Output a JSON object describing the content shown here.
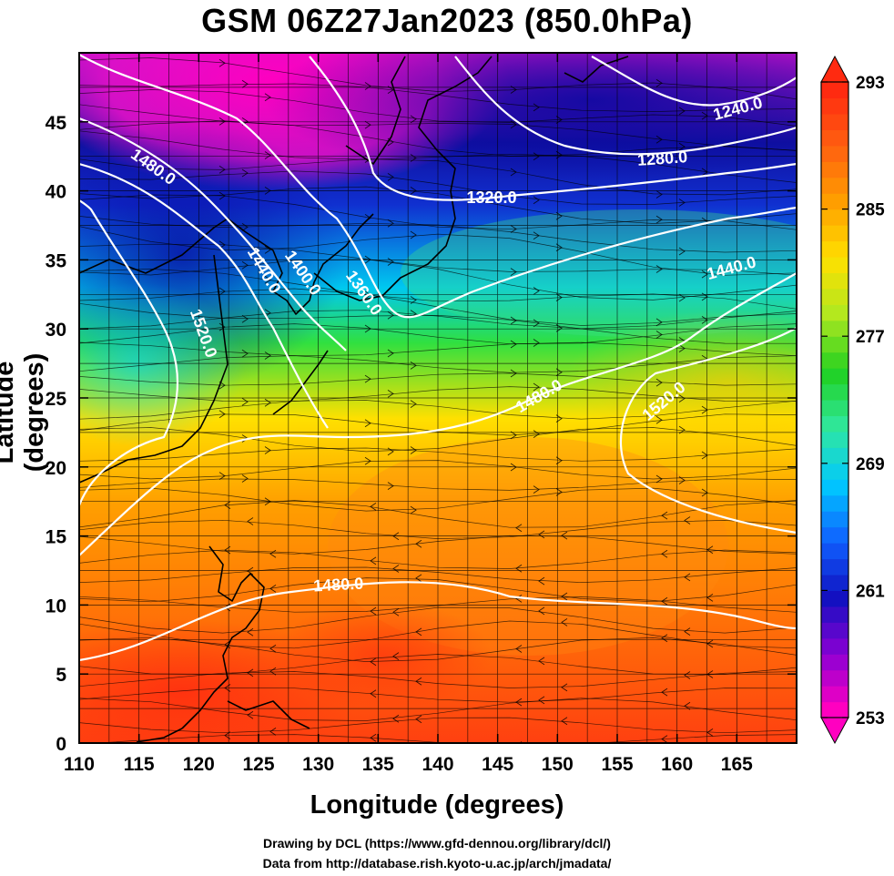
{
  "title": "GSM 06Z27Jan2023 (850.0hPa)",
  "axes": {
    "x_label": "Longitude (degrees)",
    "y_label": "Latitude  (degrees)",
    "x_ticks": [
      "110",
      "115",
      "120",
      "125",
      "130",
      "135",
      "140",
      "145",
      "150",
      "155",
      "160",
      "165"
    ],
    "y_ticks": [
      "0",
      "5",
      "10",
      "15",
      "20",
      "25",
      "30",
      "35",
      "40",
      "45"
    ],
    "x_range": [
      110,
      170
    ],
    "y_range": [
      0,
      50
    ]
  },
  "colorbar": {
    "labels": [
      "293",
      "285",
      "277",
      "269",
      "261",
      "253"
    ],
    "range": [
      253,
      293
    ],
    "colors": [
      "#ff00c0",
      "#8a00d4",
      "#1010c0",
      "#1060ff",
      "#00c8ff",
      "#30e8a0",
      "#20d020",
      "#b0e820",
      "#ffe000",
      "#ffa000",
      "#ff6010",
      "#ff2a10"
    ]
  },
  "contours": [
    {
      "label": "1240.0"
    },
    {
      "label": "1280.0"
    },
    {
      "label": "1320.0"
    },
    {
      "label": "1360.0"
    },
    {
      "label": "1400.0"
    },
    {
      "label": "1440.0"
    },
    {
      "label": "1440.0"
    },
    {
      "label": "1480.0"
    },
    {
      "label": "1480.0"
    },
    {
      "label": "1480.0"
    },
    {
      "label": "1520.0"
    },
    {
      "label": "1520.0"
    }
  ],
  "credits": {
    "line1": "Drawing by DCL (https://www.gfd-dennou.org/library/dcl/)",
    "line2": "Data from http://database.rish.kyoto-u.ac.jp/arch/jmadata/"
  }
}
